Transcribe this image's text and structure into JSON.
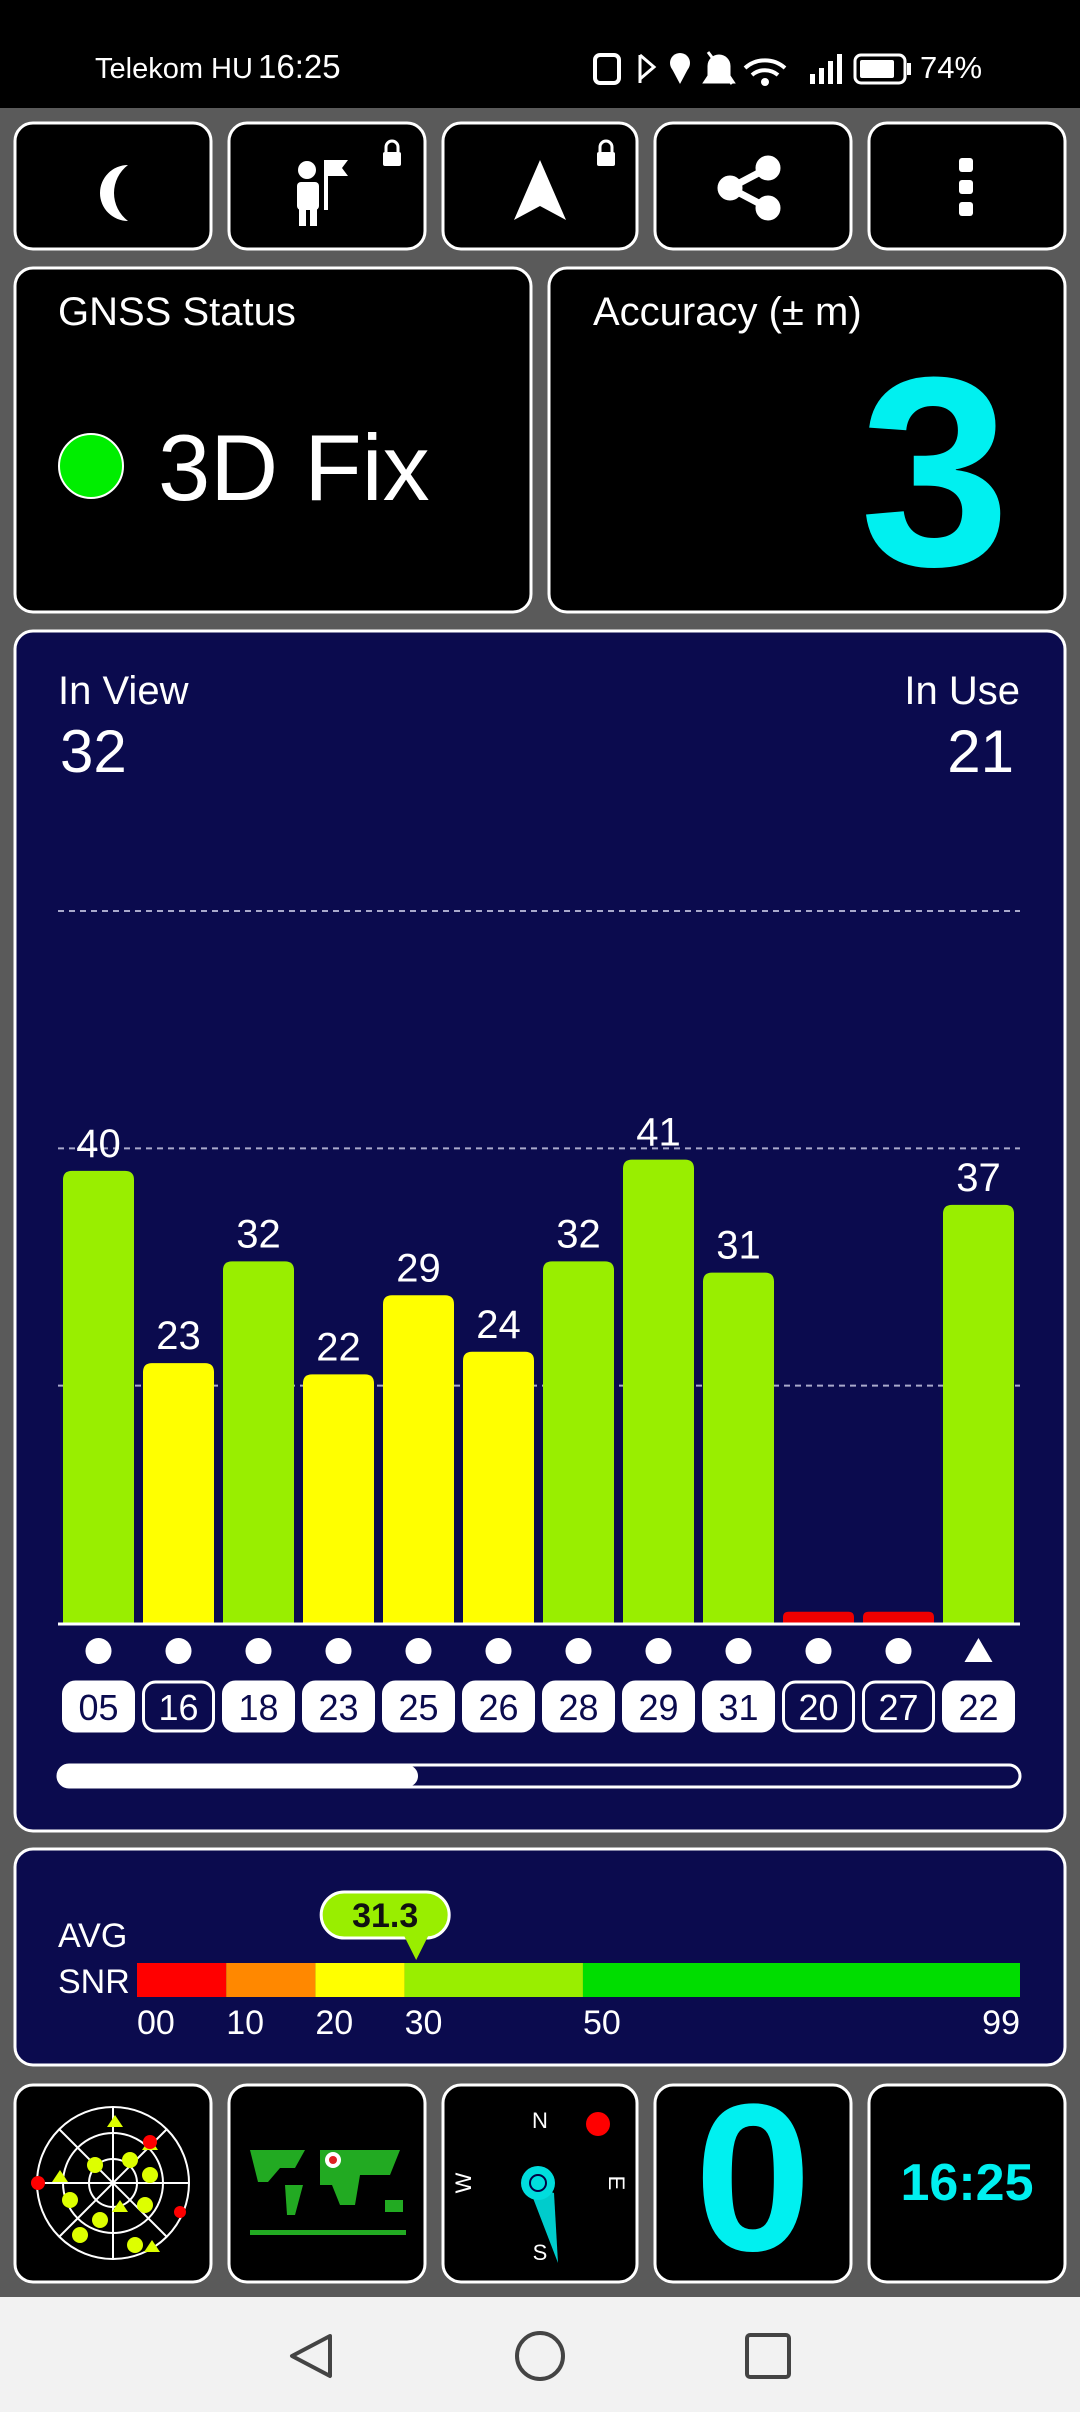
{
  "status_bar": {
    "carrier": "Telekom HU",
    "time": "16:25",
    "battery": "74%"
  },
  "gnss": {
    "label": "GNSS Status",
    "status": "3D Fix",
    "status_color": "#00ee00"
  },
  "accuracy": {
    "label": "Accuracy (± m)",
    "value": 3
  },
  "satellites": {
    "in_view_label": "In View",
    "in_view": 32,
    "in_use_label": "In Use",
    "in_use": 21,
    "chart": {
      "type": "bar",
      "categories": [
        "05",
        "16",
        "18",
        "23",
        "25",
        "26",
        "28",
        "29",
        "31",
        "20",
        "27",
        "22"
      ],
      "values": [
        40,
        23,
        32,
        22,
        29,
        24,
        32,
        41,
        31,
        1,
        1,
        37
      ],
      "value_labels": [
        "40",
        "23",
        "32",
        "22",
        "29",
        "24",
        "32",
        "41",
        "31",
        null,
        null,
        "37"
      ],
      "colors": [
        "#99ee00",
        "#ffff00",
        "#99ee00",
        "#ffff00",
        "#ffff00",
        "#ffff00",
        "#99ee00",
        "#99ee00",
        "#99ee00",
        "#ee0000",
        "#ee0000",
        "#99ee00"
      ],
      "markers": [
        "circle",
        "circle",
        "circle",
        "circle",
        "circle",
        "circle",
        "circle",
        "circle",
        "circle",
        "circle",
        "circle",
        "triangle"
      ],
      "used": [
        true,
        false,
        true,
        true,
        true,
        true,
        true,
        true,
        true,
        false,
        false,
        true
      ],
      "ylim": [
        0,
        63
      ]
    }
  },
  "snr": {
    "label_lines": [
      "AVG",
      "SNR"
    ],
    "value": 31.3,
    "xlim": [
      0,
      99
    ],
    "xticks": [
      {
        "value": 0,
        "label": "00"
      },
      10,
      20,
      30,
      50,
      99
    ],
    "segment_colors": [
      "#ff0000",
      "#ff8800",
      "#ffff00",
      "#99ee00",
      "#00dd00"
    ]
  },
  "widgets": {
    "compass": [
      "N",
      "E",
      "S",
      "W"
    ],
    "speed": 0,
    "clock": "16:25"
  }
}
